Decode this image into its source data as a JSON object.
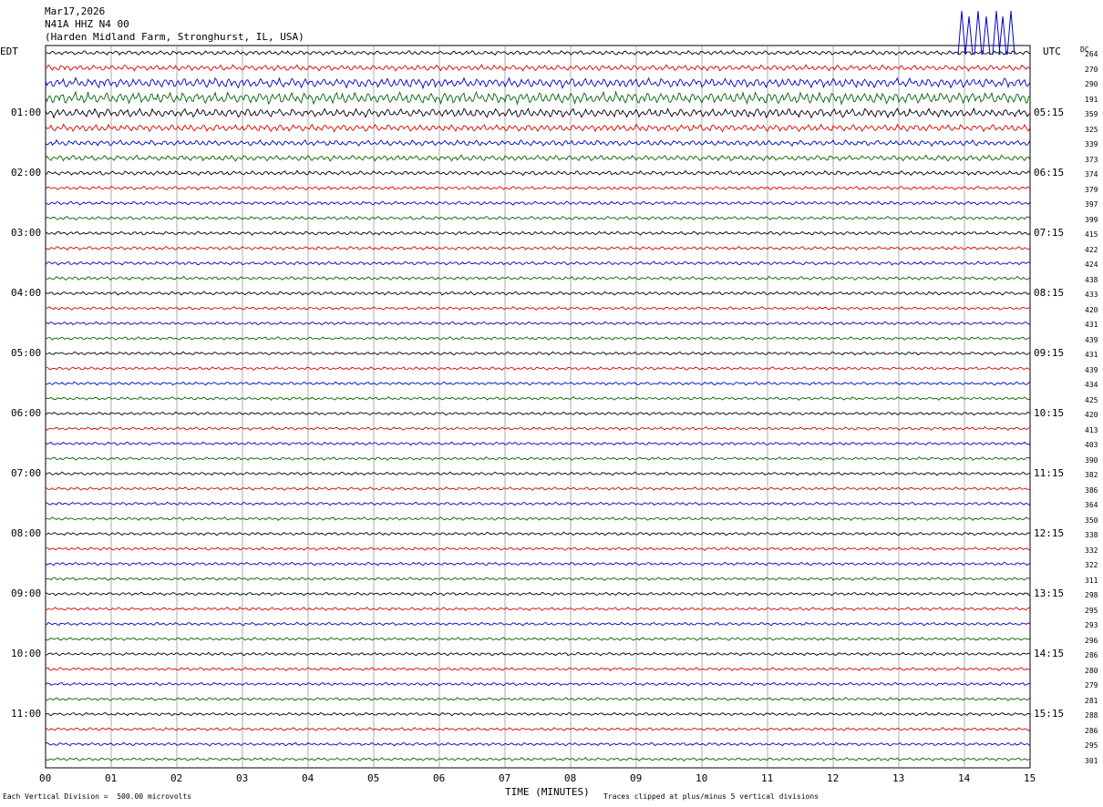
{
  "header": {
    "date": "Mar17,2026",
    "station": "N41A HHZ N4 00",
    "location": "(Harden Midland Farm, Stronghurst, IL, USA)"
  },
  "left_zone_label": "EDT",
  "right_zone_label": "UTC",
  "dc_label": "DC",
  "chart_data": {
    "type": "line",
    "title": "N41A HHZ N4 00",
    "xlabel": "TIME (MINUTES)",
    "x_ticks": [
      "00",
      "01",
      "02",
      "03",
      "04",
      "05",
      "06",
      "07",
      "08",
      "09",
      "10",
      "11",
      "12",
      "13",
      "14",
      "15"
    ],
    "xlim": [
      0,
      15
    ],
    "trace_colors": [
      "#000000",
      "#dd0000",
      "#0000cc",
      "#006600"
    ],
    "left_hour_labels": [
      "01:00",
      "02:00",
      "03:00",
      "04:00",
      "05:00",
      "06:00",
      "07:00",
      "08:00",
      "09:00",
      "10:00",
      "11:00"
    ],
    "right_hour_labels": [
      "05:15",
      "06:15",
      "07:15",
      "08:15",
      "09:15",
      "10:15",
      "11:15",
      "12:15",
      "13:15",
      "14:15",
      "15:15"
    ],
    "dc_offsets": [
      "264",
      "270",
      "290",
      "191",
      "359",
      "325",
      "339",
      "373",
      "374",
      "379",
      "397",
      "399",
      "415",
      "422",
      "424",
      "438",
      "433",
      "420",
      "431",
      "439",
      "431",
      "439",
      "434",
      "425",
      "420",
      "413",
      "403",
      "390",
      "382",
      "386",
      "364",
      "350",
      "338",
      "332",
      "322",
      "311",
      "298",
      "295",
      "293",
      "296",
      "286",
      "280",
      "279",
      "281",
      "288",
      "286",
      "295",
      "301"
    ],
    "amplitude_level": [
      1.0,
      1.3,
      2.2,
      2.6,
      2.0,
      1.6,
      1.3,
      1.3,
      1.0,
      0.8,
      0.8,
      0.8,
      0.8,
      0.8,
      0.8,
      0.8,
      0.8,
      0.7,
      0.7,
      0.7,
      0.7,
      0.7,
      0.7,
      0.7,
      0.7,
      0.7,
      0.7,
      0.7,
      0.7,
      0.7,
      0.7,
      0.7,
      0.7,
      0.7,
      0.7,
      0.7,
      0.7,
      0.7,
      0.7,
      0.7,
      0.7,
      0.7,
      0.7,
      0.7,
      0.7,
      0.7,
      0.7,
      0.7
    ]
  },
  "footer": {
    "scale_note": "Each Vertical Division =  500.00 microvolts",
    "clip_note": "Traces clipped at plus/minus 5 vertical divisions"
  }
}
